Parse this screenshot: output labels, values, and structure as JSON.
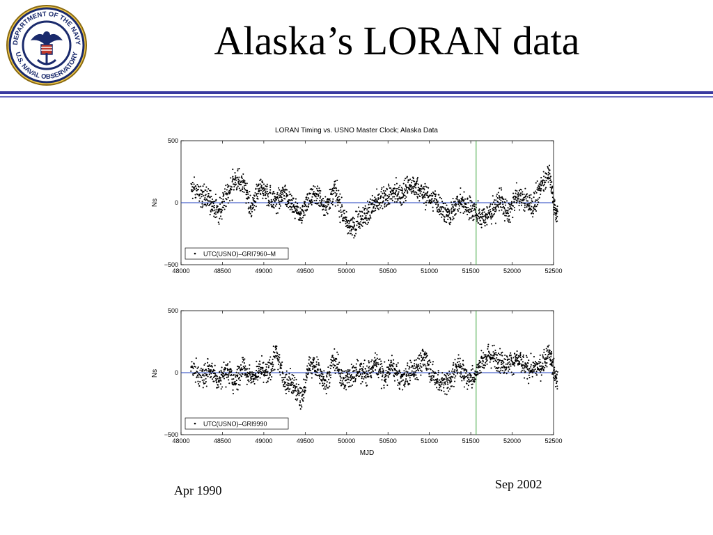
{
  "slide": {
    "title": "Alaska’s LORAN data",
    "logo_text_top": "DEPARTMENT OF THE NAVY",
    "logo_text_bottom": "U.S. NAVAL OBSERVATORY",
    "note_start": "Apr 1990",
    "note_end": "Sep 2002"
  },
  "colors": {
    "rule": "#3a3aa0",
    "zero_line": "#1f3fbf",
    "marker_line": "#2e9e2e",
    "points": "#000000"
  },
  "chart_data": [
    {
      "type": "scatter",
      "title": "LORAN Timing vs. USNO Master Clock; Alaska Data",
      "xlabel": "",
      "ylabel": "Ns",
      "xlim": [
        48000,
        52500
      ],
      "ylim": [
        -500,
        500
      ],
      "x_ticks": [
        48000,
        48500,
        49000,
        49500,
        50000,
        50500,
        51000,
        51500,
        52000,
        52500
      ],
      "y_ticks": [
        -500,
        0,
        500
      ],
      "legend": {
        "position": "bottom-left",
        "entries": [
          "UTC(USNO)–GRI7960–M"
        ]
      },
      "horizontal_line_y": 0,
      "vertical_line_x": 51565,
      "series": [
        {
          "name": "UTC(USNO)–GRI7960–M",
          "x": [
            48120,
            48250,
            48350,
            48450,
            48550,
            48650,
            48750,
            48850,
            48950,
            49050,
            49150,
            49250,
            49350,
            49450,
            49550,
            49650,
            49750,
            49850,
            49950,
            50050,
            50150,
            50250,
            50350,
            50450,
            50550,
            50650,
            50750,
            50850,
            50950,
            51050,
            51150,
            51250,
            51350,
            51450,
            51550,
            51650,
            51750,
            51850,
            51950,
            52050,
            52150,
            52250,
            52350,
            52450,
            52520
          ],
          "y": [
            120,
            60,
            20,
            -80,
            40,
            180,
            160,
            -60,
            120,
            60,
            10,
            80,
            -20,
            -100,
            30,
            60,
            -40,
            120,
            -90,
            -220,
            -130,
            -80,
            -10,
            40,
            80,
            60,
            150,
            120,
            60,
            30,
            -40,
            -110,
            20,
            -20,
            -70,
            -120,
            -80,
            40,
            -110,
            60,
            20,
            -30,
            140,
            250,
            -80
          ]
        }
      ]
    },
    {
      "type": "scatter",
      "title": "",
      "xlabel": "MJD",
      "ylabel": "Ns",
      "xlim": [
        48000,
        52500
      ],
      "ylim": [
        -500,
        500
      ],
      "x_ticks": [
        48000,
        48500,
        49000,
        49500,
        50000,
        50500,
        51000,
        51500,
        52000,
        52500
      ],
      "y_ticks": [
        -500,
        0,
        500
      ],
      "legend": {
        "position": "bottom-left",
        "entries": [
          "UTC(USNO)–GRI9990"
        ]
      },
      "horizontal_line_y": 0,
      "vertical_line_x": 51565,
      "series": [
        {
          "name": "UTC(USNO)–GRI9990",
          "x": [
            48120,
            48250,
            48350,
            48450,
            48550,
            48650,
            48750,
            48850,
            48950,
            49050,
            49150,
            49250,
            49350,
            49450,
            49550,
            49650,
            49750,
            49850,
            49950,
            50050,
            50150,
            50250,
            50350,
            50450,
            50550,
            50650,
            50750,
            50850,
            50950,
            51050,
            51150,
            51250,
            51350,
            51450,
            51550,
            51650,
            51750,
            51850,
            51950,
            52050,
            52150,
            52250,
            52350,
            52450,
            52520
          ],
          "y": [
            60,
            -40,
            40,
            -60,
            20,
            -80,
            60,
            -40,
            20,
            -20,
            160,
            -60,
            -80,
            -220,
            60,
            30,
            -80,
            120,
            -60,
            -40,
            40,
            -20,
            80,
            -40,
            60,
            -60,
            -20,
            40,
            120,
            -40,
            -80,
            -60,
            60,
            -40,
            -40,
            120,
            140,
            100,
            60,
            120,
            40,
            20,
            60,
            160,
            -40
          ]
        }
      ]
    }
  ]
}
